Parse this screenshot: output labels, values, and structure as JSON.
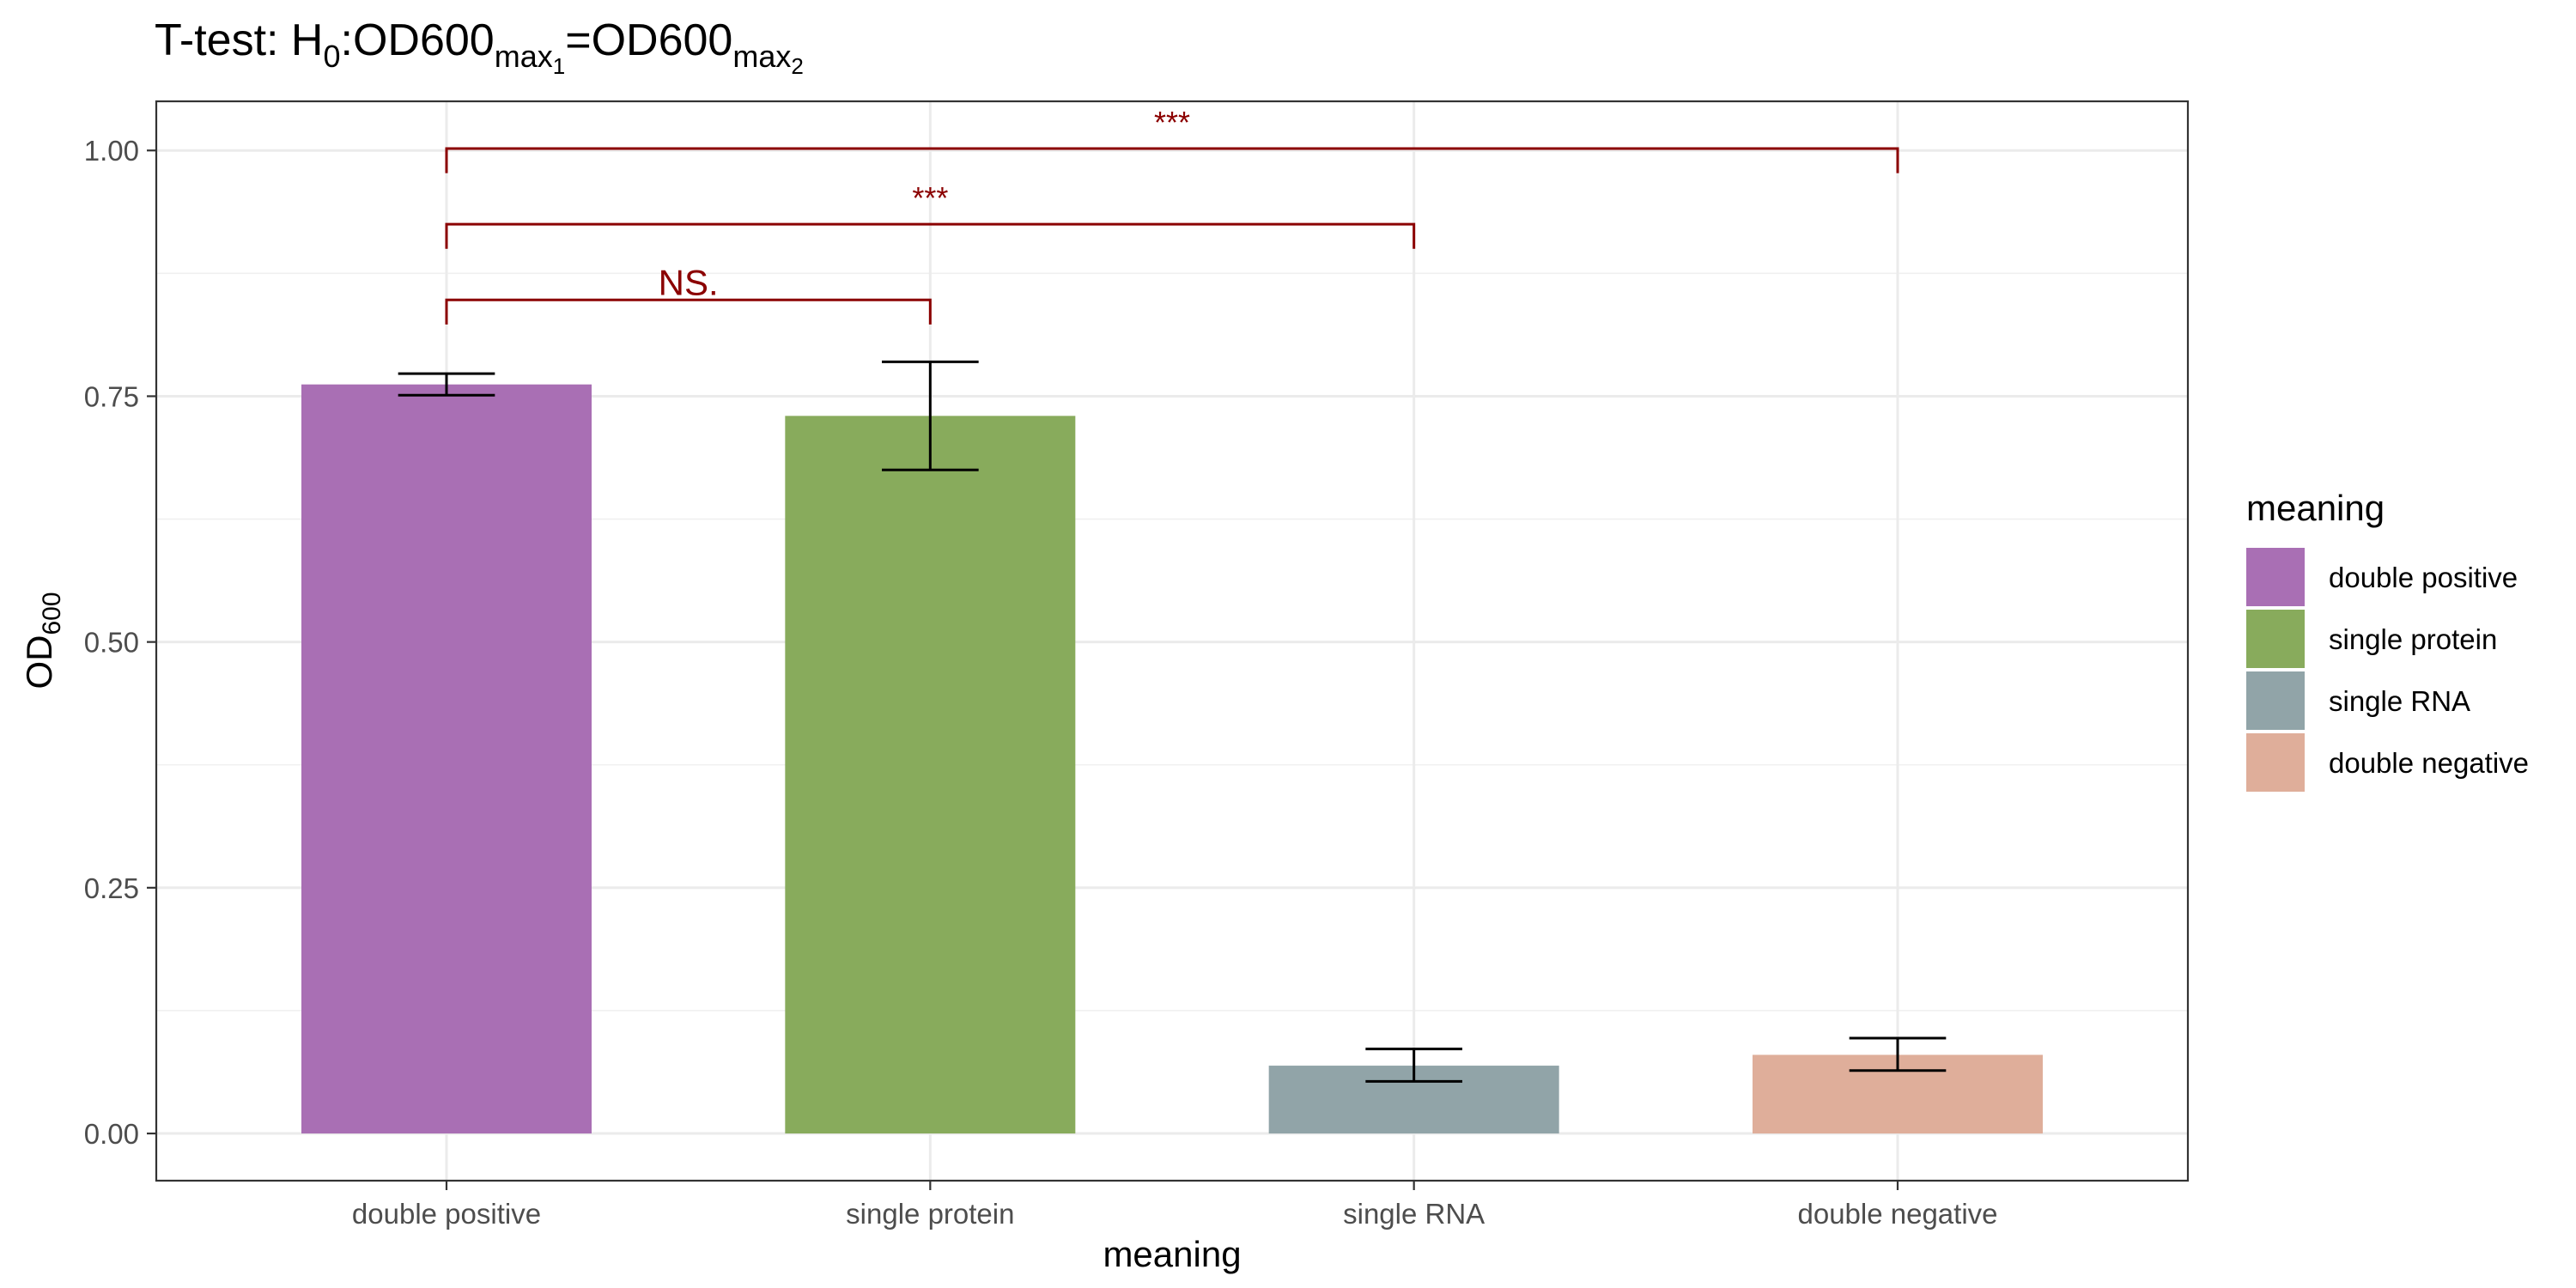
{
  "chart_data": {
    "type": "bar",
    "title": "T-test: H0:OD600max1=OD600max2",
    "title_parts": {
      "pre": "T-test: H",
      "sub0": "0",
      "mid": ":OD600",
      "max_a": "max",
      "idx_a": "1",
      "eq": "=OD600",
      "max_b": "max",
      "idx_b": "2"
    },
    "xlabel": "meaning",
    "ylabel": "OD",
    "ylabel_sub": "600",
    "categories": [
      "double positive",
      "single protein",
      "single RNA",
      "double negative"
    ],
    "values": [
      0.762,
      0.73,
      0.069,
      0.08
    ],
    "error_bars": [
      {
        "low": 0.751,
        "high": 0.773
      },
      {
        "low": 0.675,
        "high": 0.785
      },
      {
        "low": 0.053,
        "high": 0.086
      },
      {
        "low": 0.064,
        "high": 0.097
      }
    ],
    "colors": [
      "#a96fb4",
      "#88ab5c",
      "#91a4a8",
      "#dfae9a"
    ],
    "ylim": [
      -0.048,
      1.05
    ],
    "yticks": [
      0.0,
      0.25,
      0.5,
      0.75,
      1.0
    ],
    "ytick_labels": [
      "0.00",
      "0.25",
      "0.50",
      "0.75",
      "1.00"
    ],
    "grid": true,
    "legend": {
      "title": "meaning",
      "position": "right",
      "items": [
        "double positive",
        "single protein",
        "single RNA",
        "double negative"
      ]
    },
    "significance": [
      {
        "from": 0,
        "to": 1,
        "y": 0.848,
        "label": "NS."
      },
      {
        "from": 0,
        "to": 2,
        "y": 0.925,
        "label": "***"
      },
      {
        "from": 0,
        "to": 3,
        "y": 1.002,
        "label": "***"
      }
    ],
    "significance_color": "#8b0000"
  }
}
